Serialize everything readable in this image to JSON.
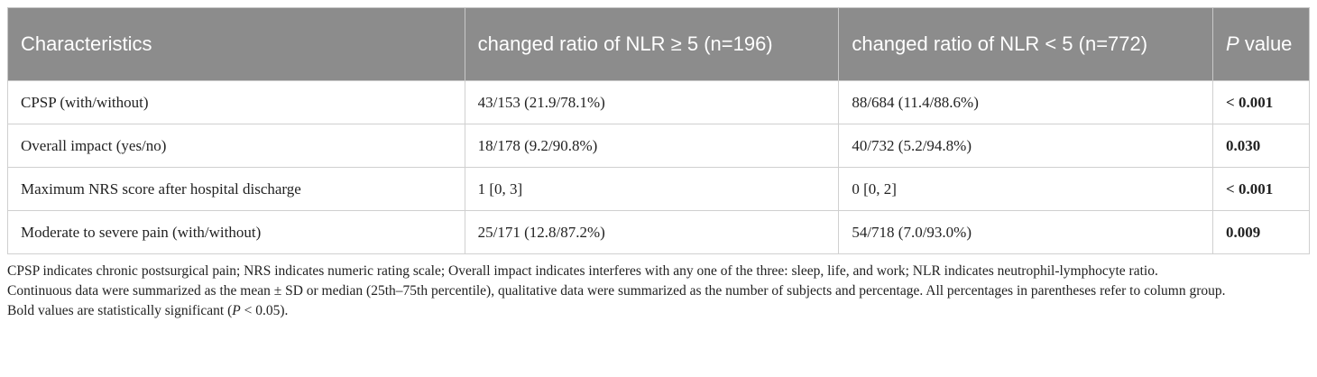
{
  "table": {
    "header": [
      "Characteristics",
      "changed ratio of NLR ≥ 5 (n=196)",
      "changed ratio of NLR < 5 (n=772)",
      {
        "italic": "P",
        "rest": " value"
      }
    ],
    "rows": [
      [
        "CPSP (with/without)",
        "43/153 (21.9/78.1%)",
        "88/684 (11.4/88.6%)",
        "< 0.001"
      ],
      [
        "Overall impact (yes/no)",
        "18/178 (9.2/90.8%)",
        "40/732 (5.2/94.8%)",
        "0.030"
      ],
      [
        "Maximum NRS score after hospital discharge",
        "1 [0, 3]",
        "0 [0, 2]",
        "< 0.001"
      ],
      [
        "Moderate to severe pain (with/without)",
        "25/171 (12.8/87.2%)",
        "54/718 (7.0/93.0%)",
        "0.009"
      ]
    ]
  },
  "footnotes": [
    "CPSP indicates chronic postsurgical pain; NRS indicates numeric rating scale; Overall impact indicates interferes with any one of the three: sleep, life, and work; NLR indicates neutrophil-lymphocyte ratio.",
    "Continuous data were summarized as the mean ± SD or median (25th–75th percentile), qualitative data were summarized as the number of subjects and percentage. All percentages in parentheses refer to column group.",
    {
      "before": "Bold values are statistically significant (",
      "italic": "P",
      "after": " < 0.05)."
    }
  ]
}
